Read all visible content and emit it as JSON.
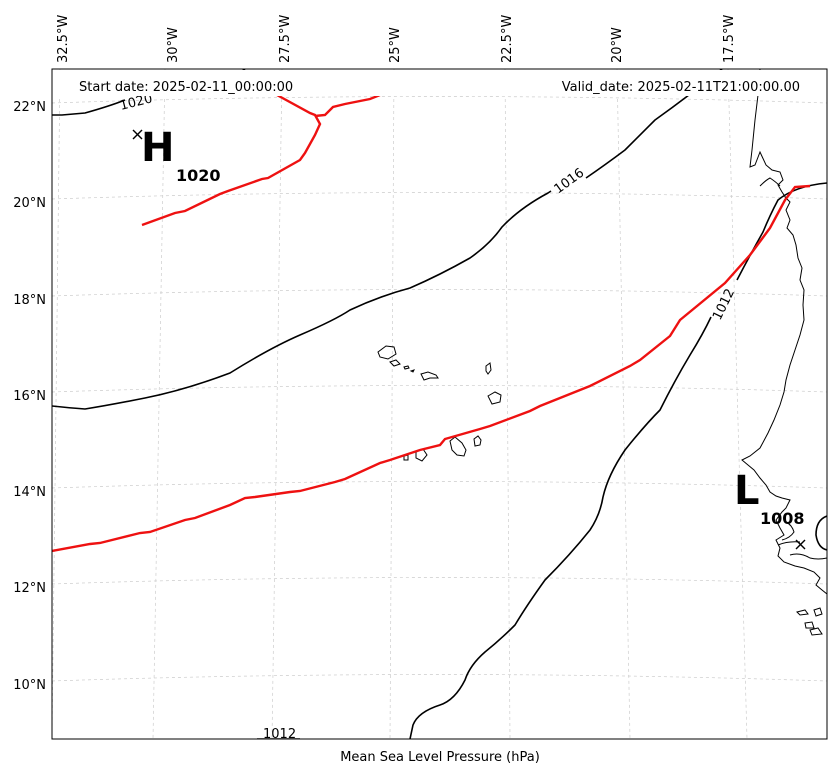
{
  "header": {
    "start_date": "Start date: 2025-02-11_00:00:00",
    "valid_date": "Valid_date: 2025-02-11T21:00:00.00"
  },
  "caption": "Mean Sea Level Pressure (hPa)",
  "axes": {
    "lon_ticks": [
      "32.5°W",
      "30°W",
      "27.5°W",
      "25°W",
      "22.5°W",
      "20°W",
      "17.5°W"
    ],
    "lat_ticks": [
      "22°N",
      "20°N",
      "18°N",
      "16°N",
      "14°N",
      "12°N",
      "10°N"
    ]
  },
  "contour_labels": {
    "c1020": "1020",
    "c1016": "1016",
    "c1012_east": "1012",
    "c1012_south": "1012"
  },
  "pressure_centers": {
    "high": {
      "symbol": "H",
      "value": "1020"
    },
    "low": {
      "symbol": "L",
      "value": "1008"
    }
  },
  "colors": {
    "isobar": "#000000",
    "reference_isobar": "#ee1111",
    "coastline": "#000000",
    "gridline": "#cccccc"
  }
}
